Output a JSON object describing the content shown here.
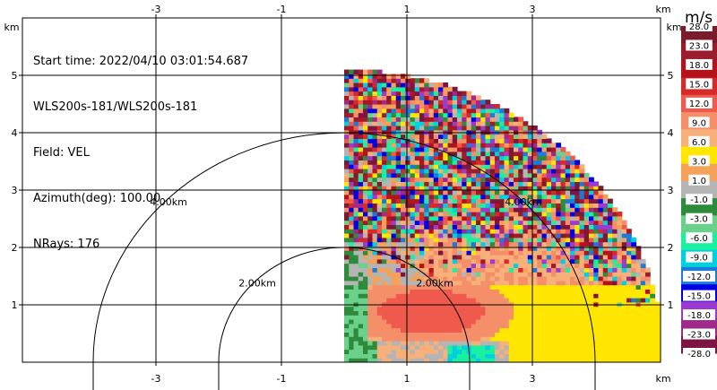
{
  "info": {
    "start_time": "Start time: 2022/04/10 03:01:54.687",
    "site": "WLS200s-181/WLS200s-181",
    "field": "Field: VEL",
    "azimuth": "Azimuth(deg): 100.00",
    "nrays": "NRays: 176"
  },
  "chart_data": {
    "type": "heatmap",
    "description_type": "ppi_radar_sector",
    "x_unit": "km",
    "y_unit": "km",
    "xlim": [
      -4.0,
      4.3
    ],
    "ylim": [
      -0.1,
      5.0
    ],
    "x_ticks": [
      -3,
      -1,
      1,
      3
    ],
    "y_ticks": [
      1,
      2,
      3,
      4,
      5
    ],
    "x_tick_labels": [
      "-3",
      "-1",
      "1",
      "3"
    ],
    "y_tick_labels": [
      "1",
      "2",
      "3",
      "4",
      "5"
    ],
    "axis_unit_label": "km",
    "range_rings_km": [
      2.0,
      4.0
    ],
    "range_ring_labels": [
      "2.00km",
      "4.00km"
    ],
    "sector_max_range_km": 5.1,
    "sector_start_x_km": 0.0,
    "grid": true,
    "colorbar": {
      "unit": "m/s",
      "labels": [
        "28.0",
        "23.0",
        "18.0",
        "15.0",
        "12.0",
        "9.0",
        "6.0",
        "3.0",
        "1.0",
        "-1.0",
        "-3.0",
        "-6.0",
        "-9.0",
        "-12.0",
        "-15.0",
        "-18.0",
        "-23.0",
        "-28.0"
      ],
      "colors": [
        "#7a1c2c",
        "#9b1c2e",
        "#b5121b",
        "#d42a2a",
        "#f05a4c",
        "#f48f6a",
        "#f7b07a",
        "#ffe600",
        "#f4a25a",
        "#b4b4b4",
        "#2e8b3c",
        "#6ad08a",
        "#19f0a0",
        "#00cfe0",
        "#1b7bd8",
        "#0000e6",
        "#9b3bd0",
        "#a02a8a",
        "#7c1542"
      ]
    }
  }
}
